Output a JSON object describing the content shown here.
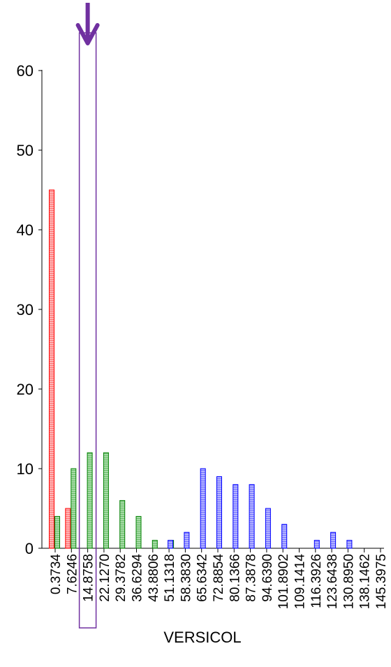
{
  "chart_data": {
    "type": "bar",
    "xlabel": "VERSICOL",
    "ylabel": "",
    "ylim": [
      0,
      60
    ],
    "yticks": [
      "0",
      "10",
      "20",
      "30",
      "40",
      "50",
      "60"
    ],
    "categories": [
      "0.3734",
      "7.6246",
      "14.8758",
      "22.1270",
      "29.3782",
      "36.6294",
      "43.8806",
      "51.1318",
      "58.3830",
      "65.6342",
      "72.8854",
      "80.1366",
      "87.3878",
      "94.6390",
      "101.8902",
      "109.1414",
      "116.3926",
      "123.6438",
      "130.8950",
      "138.1462",
      "145.3975"
    ],
    "series": [
      {
        "color": "#ff0000",
        "fill": "#ffb3b3",
        "values": [
          45,
          5,
          null,
          null,
          null,
          null,
          null,
          null,
          null,
          null,
          null,
          null,
          null,
          null,
          null,
          null,
          null,
          null,
          null,
          null,
          null
        ]
      },
      {
        "color": "#008000",
        "fill": "#a6dba6",
        "values": [
          4,
          10,
          12,
          12,
          6,
          4,
          1,
          1,
          null,
          null,
          null,
          null,
          null,
          null,
          null,
          null,
          null,
          null,
          null,
          null,
          null
        ]
      },
      {
        "color": "#0000ff",
        "fill": "#b3b3ff",
        "values": [
          null,
          null,
          null,
          null,
          null,
          null,
          null,
          1,
          2,
          10,
          9,
          8,
          8,
          5,
          3,
          null,
          1,
          2,
          1,
          null,
          null
        ]
      }
    ],
    "grid": false,
    "annotation": {
      "type": "highlight-box-with-arrow",
      "color": "#7030a0",
      "category": "14.8758"
    }
  }
}
